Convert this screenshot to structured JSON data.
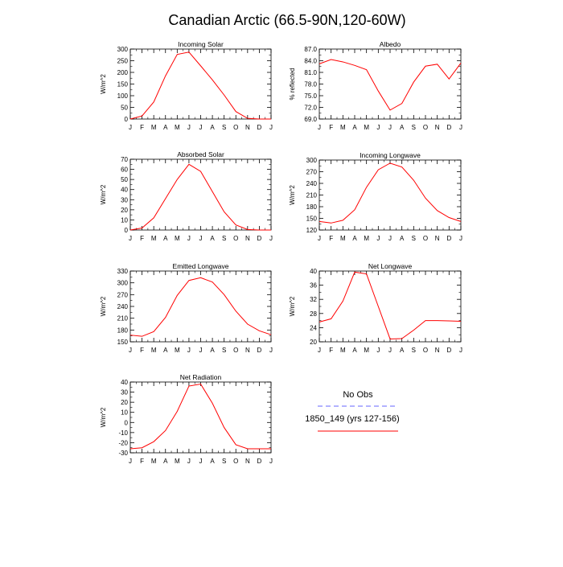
{
  "figure": {
    "title": "Canadian Arctic (66.5-90N,120-60W)"
  },
  "colors": {
    "model": "#ff0000",
    "obs": "#6666ff",
    "axis": "#000000"
  },
  "legend": {
    "items": [
      {
        "label": "No Obs",
        "style": "dashed",
        "color": "#6666ff"
      },
      {
        "label": "1850_149 (yrs 127-156)",
        "style": "solid",
        "color": "#ff0000"
      }
    ]
  },
  "chart_data": [
    {
      "type": "line",
      "title": "Incoming Solar",
      "ylabel": "W/m^2",
      "categories": [
        "J",
        "F",
        "M",
        "A",
        "M",
        "J",
        "J",
        "A",
        "S",
        "O",
        "N",
        "D",
        "J"
      ],
      "ylim": [
        0,
        300
      ],
      "yticks": [
        0,
        50,
        100,
        150,
        200,
        250,
        300
      ],
      "ytick_labels": [
        "0",
        "50",
        "100",
        "150",
        "200",
        "250",
        "300"
      ],
      "series": [
        {
          "values": [
            0,
            13,
            73,
            185,
            277,
            287,
            228,
            168,
            103,
            32,
            3,
            0,
            0
          ]
        }
      ]
    },
    {
      "type": "line",
      "title": "Albedo",
      "ylabel": "% reflected",
      "categories": [
        "J",
        "F",
        "M",
        "A",
        "M",
        "J",
        "J",
        "A",
        "S",
        "O",
        "N",
        "D",
        "J"
      ],
      "ylim": [
        69,
        87
      ],
      "yticks": [
        69,
        72,
        75,
        78,
        81,
        84,
        87
      ],
      "ytick_labels": [
        "69.0",
        "72.0",
        "75.0",
        "78.0",
        "81.0",
        "84.0",
        "87.0"
      ],
      "series": [
        {
          "values": [
            83.2,
            84.3,
            83.7,
            82.8,
            81.7,
            76.2,
            71.3,
            73.0,
            78.5,
            82.6,
            83.1,
            79.3,
            83.4
          ]
        }
      ]
    },
    {
      "type": "line",
      "title": "Absorbed Solar",
      "ylabel": "W/m^2",
      "categories": [
        "J",
        "F",
        "M",
        "A",
        "M",
        "J",
        "J",
        "A",
        "S",
        "O",
        "N",
        "D",
        "J"
      ],
      "ylim": [
        0,
        70
      ],
      "yticks": [
        0,
        10,
        20,
        30,
        40,
        50,
        60,
        70
      ],
      "ytick_labels": [
        "0",
        "10",
        "20",
        "30",
        "40",
        "50",
        "60",
        "70"
      ],
      "series": [
        {
          "values": [
            0,
            2,
            12,
            31,
            50,
            65,
            58,
            38,
            18,
            5,
            0.5,
            0,
            0
          ]
        }
      ]
    },
    {
      "type": "line",
      "title": "Incoming Longwave",
      "ylabel": "W/m^2",
      "categories": [
        "J",
        "F",
        "M",
        "A",
        "M",
        "J",
        "J",
        "A",
        "S",
        "O",
        "N",
        "D",
        "J"
      ],
      "ylim": [
        120,
        300
      ],
      "yticks": [
        120,
        150,
        180,
        210,
        240,
        270,
        300
      ],
      "ytick_labels": [
        "120",
        "150",
        "180",
        "210",
        "240",
        "270",
        "300"
      ],
      "series": [
        {
          "values": [
            142,
            138,
            145,
            172,
            230,
            275,
            292,
            282,
            248,
            202,
            170,
            152,
            142
          ]
        }
      ]
    },
    {
      "type": "line",
      "title": "Emitted Longwave",
      "ylabel": "W/m^2",
      "categories": [
        "J",
        "F",
        "M",
        "A",
        "M",
        "J",
        "J",
        "A",
        "S",
        "O",
        "N",
        "D",
        "J"
      ],
      "ylim": [
        150,
        330
      ],
      "yticks": [
        150,
        180,
        210,
        240,
        270,
        300,
        330
      ],
      "ytick_labels": [
        "150",
        "180",
        "210",
        "240",
        "270",
        "300",
        "330"
      ],
      "series": [
        {
          "values": [
            167,
            164,
            176,
            212,
            268,
            306,
            313,
            302,
            270,
            228,
            195,
            178,
            168
          ]
        }
      ]
    },
    {
      "type": "line",
      "title": "Net Longwave",
      "ylabel": "W/m^2",
      "categories": [
        "J",
        "F",
        "M",
        "A",
        "M",
        "J",
        "J",
        "A",
        "S",
        "O",
        "N",
        "D",
        "J"
      ],
      "ylim": [
        20,
        40
      ],
      "yticks": [
        20,
        24,
        28,
        32,
        36,
        40
      ],
      "ytick_labels": [
        "20",
        "24",
        "28",
        "32",
        "36",
        "40"
      ],
      "series": [
        {
          "values": [
            25.6,
            26.5,
            31.5,
            39.7,
            39.2,
            30.0,
            20.8,
            20.9,
            23.3,
            26.0,
            26.0,
            25.9,
            25.8
          ]
        }
      ]
    },
    {
      "type": "line",
      "title": "Net Radiation",
      "ylabel": "W/m^2",
      "categories": [
        "J",
        "F",
        "M",
        "A",
        "M",
        "J",
        "J",
        "A",
        "S",
        "O",
        "N",
        "D",
        "J"
      ],
      "ylim": [
        -30,
        40
      ],
      "yticks": [
        -30,
        -20,
        -10,
        0,
        10,
        20,
        30,
        40
      ],
      "ytick_labels": [
        "-30",
        "-20",
        "-10",
        "0",
        "10",
        "20",
        "30",
        "40"
      ],
      "series": [
        {
          "values": [
            -26,
            -25,
            -19,
            -8,
            11,
            36,
            38,
            19,
            -5,
            -22,
            -26,
            -26,
            -26
          ]
        }
      ]
    }
  ]
}
